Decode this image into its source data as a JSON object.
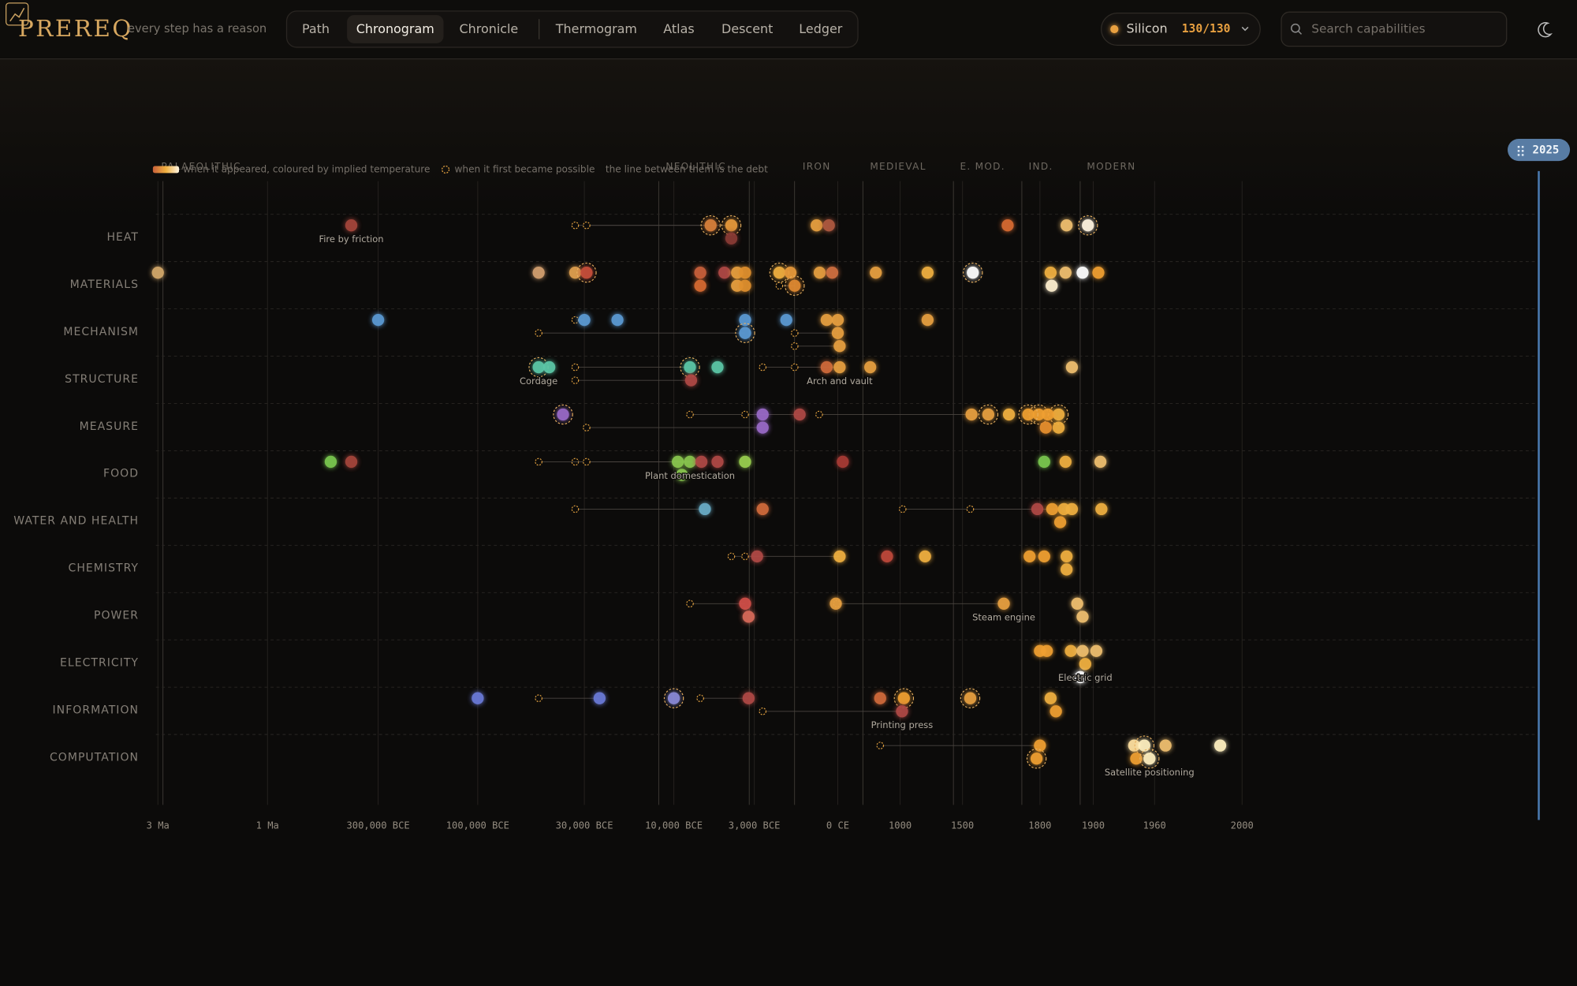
{
  "header": {
    "logo": "PREREQ",
    "tagline": "every step has a reason",
    "tabs": [
      "Path",
      "Chronogram",
      "Chronicle",
      "Thermogram",
      "Atlas",
      "Descent",
      "Ledger"
    ],
    "active_tab": 1,
    "scope": {
      "name": "Silicon",
      "count": "130/130"
    },
    "search_placeholder": "Search capabilities"
  },
  "chart_data": {
    "type": "chronogram",
    "now": 2025,
    "legend": [
      "when it appeared, coloured by implied temperature",
      "when it first became possible",
      "the line between them is the debt"
    ],
    "eras": [
      "PALAEOLITHIC",
      "NEOLITHIC",
      "IRON",
      "MEDIEVAL",
      "E. MOD.",
      "IND.",
      "MODERN"
    ],
    "xticks": [
      {
        "value": -3000000,
        "label": "3 Ma"
      },
      {
        "value": -1000000,
        "label": "1 Ma"
      },
      {
        "value": -300000,
        "label": "300,000 BCE"
      },
      {
        "value": -100000,
        "label": "100,000 BCE"
      },
      {
        "value": -30000,
        "label": "30,000 BCE"
      },
      {
        "value": -10000,
        "label": "10,000 BCE"
      },
      {
        "value": -3000,
        "label": "3,000 BCE"
      },
      {
        "value": 0,
        "label": "0 CE"
      },
      1000,
      1500,
      1800,
      1900,
      1960,
      2000
    ],
    "rows": [
      {
        "name": "HEAT",
        "items": [
          {
            "x": -470000,
            "color": "#a5453a",
            "label": "Fire by friction"
          },
          {
            "x": -6800,
            "color": "#d9803a",
            "possible": -36000,
            "key": true
          },
          {
            "x": -5000,
            "color": "#e89a3a",
            "possible": -29500,
            "key": true
          },
          {
            "x": -5000,
            "color": "#8a3a35"
          },
          {
            "x": -760,
            "color": "#e8a040"
          },
          {
            "x": -320,
            "color": "#b05a40"
          },
          {
            "x": 1675,
            "color": "#d86a30"
          },
          {
            "x": 1850,
            "color": "#f0c070"
          },
          {
            "x": 1890,
            "color": "#fff4e0",
            "key": true
          }
        ]
      },
      {
        "name": "MATERIALS",
        "items": [
          {
            "x": -3000000,
            "color": "#d4a86a"
          },
          {
            "x": -60000,
            "color": "#d4a070"
          },
          {
            "x": -36000,
            "color": "#e0a050"
          },
          {
            "x": -29500,
            "color": "#c8503a",
            "key": true
          },
          {
            "x": -7700,
            "color": "#c8603a"
          },
          {
            "x": -7700,
            "color": "#d86a30"
          },
          {
            "x": -5600,
            "color": "#b04a45"
          },
          {
            "x": -4500,
            "color": "#e8a040"
          },
          {
            "x": -3800,
            "color": "#e0902e"
          },
          {
            "x": -4500,
            "color": "#e8a040"
          },
          {
            "x": -3800,
            "color": "#e0902e"
          },
          {
            "x": -2100,
            "color": "#f0b040",
            "key": true
          },
          {
            "x": -1700,
            "color": "#e89a3a"
          },
          {
            "x": -1550,
            "color": "#e08a30",
            "possible": -2100,
            "key": true
          },
          {
            "x": -650,
            "color": "#e8a040"
          },
          {
            "x": -200,
            "color": "#d07040"
          },
          {
            "x": 610,
            "color": "#e8a040"
          },
          {
            "x": 1220,
            "color": "#f0b040"
          },
          {
            "x": 1540,
            "color": "#ffffff",
            "key": true
          },
          {
            "x": 1820,
            "color": "#f0b040"
          },
          {
            "x": 1848,
            "color": "#f0c070"
          },
          {
            "x": 1822,
            "color": "#fff0d0"
          },
          {
            "x": 1880,
            "color": "#ffffff"
          },
          {
            "x": 1905,
            "color": "#f0a030"
          }
        ]
      },
      {
        "name": "MECHANISM",
        "items": [
          {
            "x": -300000,
            "color": "#5b9bd5"
          },
          {
            "x": -30000,
            "color": "#5b9bd5",
            "possible": -36000
          },
          {
            "x": -22600,
            "color": "#5b9bd5"
          },
          {
            "x": -3800,
            "color": "#5b9bd5"
          },
          {
            "x": -3800,
            "color": "#5b9bd5",
            "possible": -60000,
            "key": true
          },
          {
            "x": -1850,
            "color": "#5b9bd5"
          },
          {
            "x": -400,
            "color": "#e8a040"
          },
          {
            "x": 0,
            "color": "#e8a040"
          },
          {
            "x": 0,
            "color": "#e8a040",
            "possible": -1550
          },
          {
            "x": 30,
            "color": "#e8a040",
            "possible": -1550
          },
          {
            "x": 1220,
            "color": "#e8a040"
          }
        ]
      },
      {
        "name": "STRUCTURE",
        "items": [
          {
            "x": -60000,
            "color": "#5bc8a8",
            "key": true,
            "label": "Cordage"
          },
          {
            "x": -53000,
            "color": "#5bc8a8"
          },
          {
            "x": -8600,
            "color": "#5bc8a8",
            "possible": -36000,
            "key": true
          },
          {
            "x": -8500,
            "color": "#b04a45",
            "possible": -36000
          },
          {
            "x": -6200,
            "color": "#5bc8a8"
          },
          {
            "x": -400,
            "color": "#d06a3a",
            "possible": -2700
          },
          {
            "x": 30,
            "color": "#e8a040",
            "possible": -1550,
            "label": "Arch and vault"
          },
          {
            "x": 520,
            "color": "#e8a040"
          },
          {
            "x": 1860,
            "color": "#f0c070"
          }
        ]
      },
      {
        "name": "MEASURE",
        "items": [
          {
            "x": -44000,
            "color": "#9a6ac8",
            "key": true
          },
          {
            "x": -2700,
            "color": "#9a6ac8",
            "possible": -8600
          },
          {
            "x": -2700,
            "color": "#9a6ac8",
            "possible": -29500
          },
          {
            "x": -1370,
            "color": "#b04a45",
            "possible": -3800
          },
          {
            "x": 1535,
            "color": "#e8a040",
            "possible": -670
          },
          {
            "x": 1600,
            "color": "#e8a040",
            "key": true
          },
          {
            "x": 1680,
            "color": "#f0b040"
          },
          {
            "x": 1795,
            "color": "#f0a030",
            "key": true
          },
          {
            "x": 1835,
            "color": "#f0b040",
            "key": true
          },
          {
            "x": 1755,
            "color": "#f0a030",
            "key": true
          },
          {
            "x": 1815,
            "color": "#f0a030"
          },
          {
            "x": 1835,
            "color": "#f0b040"
          },
          {
            "x": 1811,
            "color": "#e8902e"
          }
        ]
      },
      {
        "name": "FOOD",
        "items": [
          {
            "x": -600000,
            "color": "#7ac850"
          },
          {
            "x": -470000,
            "color": "#a5453a"
          },
          {
            "x": -9650,
            "color": "#8ac850",
            "possible": -36000
          },
          {
            "x": -6200,
            "color": "#b04a45"
          },
          {
            "x": -3800,
            "color": "#9ad050"
          },
          {
            "x": -8600,
            "color": "#8ac850",
            "possible": -60000,
            "label": "Plant domestication"
          },
          {
            "x": -7600,
            "color": "#b04a45",
            "possible": -29500
          },
          {
            "x": -9300,
            "color": "#8ac850"
          },
          {
            "x": 80,
            "color": "#a83a35"
          },
          {
            "x": 1808,
            "color": "#7ac850"
          },
          {
            "x": 1848,
            "color": "#f0b040"
          },
          {
            "x": 1907,
            "color": "#f0c070"
          }
        ]
      },
      {
        "name": "WATER AND HEALTH",
        "items": [
          {
            "x": -7300,
            "color": "#6aaec8",
            "possible": -36000
          },
          {
            "x": -2700,
            "color": "#d06a3a"
          },
          {
            "x": 1790,
            "color": "#b04a45",
            "possible": 1020
          },
          {
            "x": 1845,
            "color": "#f0b040",
            "possible": 1530
          },
          {
            "x": 1838,
            "color": "#f0a030"
          },
          {
            "x": 1823,
            "color": "#f0a030"
          },
          {
            "x": 1860,
            "color": "#f0b040"
          },
          {
            "x": 1908,
            "color": "#f0b040"
          }
        ]
      },
      {
        "name": "CHEMISTRY",
        "items": [
          {
            "x": -2900,
            "color": "#b04a45",
            "possible": -5000
          },
          {
            "x": 30,
            "color": "#f0b040",
            "possible": -3800
          },
          {
            "x": 790,
            "color": "#c04a3a"
          },
          {
            "x": 1200,
            "color": "#f0b040"
          },
          {
            "x": 1760,
            "color": "#f0a030"
          },
          {
            "x": 1850,
            "color": "#f0b040"
          },
          {
            "x": 1808,
            "color": "#f0a030"
          },
          {
            "x": 1850,
            "color": "#f0b040"
          }
        ]
      },
      {
        "name": "POWER",
        "items": [
          {
            "x": -3800,
            "color": "#d0504a",
            "possible": -8600
          },
          {
            "x": -3500,
            "color": "#d86a5a"
          },
          {
            "x": -70,
            "color": "#e8a040"
          },
          {
            "x": 1660,
            "color": "#e8a040",
            "possible": -30,
            "label": "Steam engine"
          },
          {
            "x": 1870,
            "color": "#f0c070"
          },
          {
            "x": 1880,
            "color": "#f0c070"
          }
        ]
      },
      {
        "name": "ELECTRICITY",
        "items": [
          {
            "x": 1800,
            "color": "#f0a030"
          },
          {
            "x": 1858,
            "color": "#f0b040"
          },
          {
            "x": 1880,
            "color": "#f0c070"
          },
          {
            "x": 1903,
            "color": "#f0c070"
          },
          {
            "x": 1813,
            "color": "#f0a030"
          },
          {
            "x": 1885,
            "color": "#f0b040",
            "label": "Electric grid"
          },
          {
            "x": 1876,
            "color": "#ffffff"
          }
        ]
      },
      {
        "name": "INFORMATION",
        "items": [
          {
            "x": -100000,
            "color": "#6a7ad8"
          },
          {
            "x": -26600,
            "color": "#6a7ad8",
            "possible": -60000
          },
          {
            "x": -10000,
            "color": "#8a8ad8",
            "key": true
          },
          {
            "x": -3500,
            "color": "#b04a45",
            "possible": -7700
          },
          {
            "x": 680,
            "color": "#d06a3a"
          },
          {
            "x": 1030,
            "color": "#f0a030",
            "key": true
          },
          {
            "x": 1530,
            "color": "#e8a040",
            "key": true
          },
          {
            "x": 1820,
            "color": "#f0b040"
          },
          {
            "x": 1015,
            "color": "#b04a45",
            "possible": -2700,
            "label": "Printing press"
          },
          {
            "x": 1830,
            "color": "#f0a030"
          }
        ]
      },
      {
        "name": "COMPUTATION",
        "items": [
          {
            "x": 1800,
            "color": "#f0a030",
            "possible": 680
          },
          {
            "x": 1787,
            "color": "#f0a030",
            "key": true
          },
          {
            "x": 1940,
            "color": "#ffe0a0"
          },
          {
            "x": 1950,
            "color": "#fff0c0",
            "key": true
          },
          {
            "x": 1965,
            "color": "#f0c070"
          },
          {
            "x": 1942,
            "color": "#f0a030"
          },
          {
            "x": 1955,
            "color": "#fff0c0",
            "key": true,
            "label": "Satellite positioning"
          },
          {
            "x": 1990,
            "color": "#fff0c0"
          }
        ]
      }
    ]
  }
}
